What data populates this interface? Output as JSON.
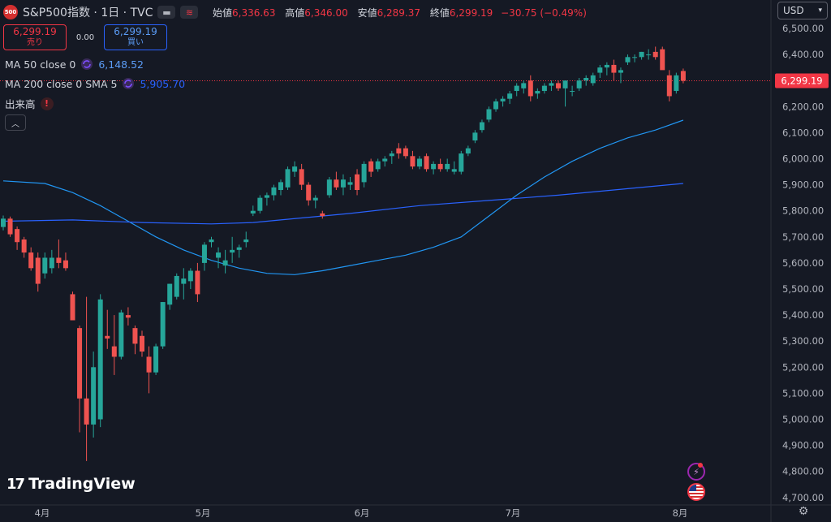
{
  "header": {
    "symbol_badge": "500",
    "title": "S&P500指数 · 1日 · TVC",
    "ohlc": [
      {
        "key": "始値",
        "value": "6,336.63"
      },
      {
        "key": "高値",
        "value": "6,346.00"
      },
      {
        "key": "安値",
        "value": "6,289.37"
      },
      {
        "key": "終値",
        "value": "6,299.19"
      }
    ],
    "change": "−30.75 (−0.49%)"
  },
  "trade": {
    "sell_price": "6,299.19",
    "sell_label": "売り",
    "spread": "0.00",
    "buy_price": "6,299.19",
    "buy_label": "買い"
  },
  "indicators": {
    "ma50": {
      "label": "MA 50 close 0",
      "value": "6,148.52",
      "color": "#2196f3"
    },
    "ma200": {
      "label": "MA 200 close 0 SMA 5",
      "value": "5,905.70",
      "color": "#2962ff"
    },
    "volume": {
      "label": "出来高"
    }
  },
  "currency": {
    "label": "USD"
  },
  "price_axis": {
    "ticks": [
      "6,500.00",
      "6,400.00",
      "6,300.00",
      "6,200.00",
      "6,100.00",
      "6,000.00",
      "5,900.00",
      "5,800.00",
      "5,700.00",
      "5,600.00",
      "5,500.00",
      "5,400.00",
      "5,300.00",
      "5,200.00",
      "5,100.00",
      "5,000.00",
      "4,900.00",
      "4,800.00",
      "4,700.00"
    ],
    "current_price": "6,299.19",
    "current_price_color": "#f23645"
  },
  "time_axis": {
    "ticks": [
      "4月",
      "5月",
      "6月",
      "7月",
      "8月"
    ]
  },
  "brand": {
    "name": "TradingView"
  },
  "chart_data": {
    "type": "candlestick",
    "ylim": [
      4660,
      6560
    ],
    "up_color": "#26a69a",
    "down_color": "#ef5350",
    "candles": [
      [
        5738,
        5782,
        5725,
        5770
      ],
      [
        5770,
        5778,
        5700,
        5710
      ],
      [
        5730,
        5740,
        5650,
        5680
      ],
      [
        5690,
        5700,
        5620,
        5640
      ],
      [
        5640,
        5660,
        5570,
        5580
      ],
      [
        5620,
        5640,
        5490,
        5520
      ],
      [
        5560,
        5640,
        5540,
        5620
      ],
      [
        5580,
        5650,
        5560,
        5620
      ],
      [
        5620,
        5690,
        5580,
        5600
      ],
      [
        5610,
        5640,
        5570,
        5580
      ],
      [
        5480,
        5490,
        5380,
        5380
      ],
      [
        5350,
        5360,
        4950,
        5080
      ],
      [
        5080,
        5470,
        4840,
        4980
      ],
      [
        4980,
        5260,
        4930,
        5200
      ],
      [
        5000,
        5480,
        4970,
        5460
      ],
      [
        5320,
        5420,
        5270,
        5310
      ],
      [
        5280,
        5400,
        5170,
        5240
      ],
      [
        5240,
        5420,
        5230,
        5410
      ],
      [
        5400,
        5430,
        5360,
        5390
      ],
      [
        5350,
        5360,
        5250,
        5290
      ],
      [
        5320,
        5340,
        5240,
        5260
      ],
      [
        5240,
        5280,
        5100,
        5180
      ],
      [
        5180,
        5290,
        5170,
        5280
      ],
      [
        5280,
        5450,
        5270,
        5450
      ],
      [
        5440,
        5520,
        5420,
        5520
      ],
      [
        5470,
        5560,
        5460,
        5550
      ],
      [
        5520,
        5580,
        5460,
        5540
      ],
      [
        5530,
        5580,
        5500,
        5570
      ],
      [
        5570,
        5600,
        5450,
        5480
      ],
      [
        5600,
        5680,
        5570,
        5670
      ],
      [
        5680,
        5700,
        5660,
        5690
      ],
      [
        5620,
        5660,
        5580,
        5640
      ],
      [
        5590,
        5650,
        5560,
        5610
      ],
      [
        5640,
        5700,
        5600,
        5650
      ],
      [
        5650,
        5670,
        5620,
        5660
      ],
      [
        5680,
        5720,
        5660,
        5690
      ],
      [
        5790,
        5820,
        5780,
        5800
      ],
      [
        5800,
        5860,
        5790,
        5850
      ],
      [
        5850,
        5870,
        5820,
        5860
      ],
      [
        5860,
        5900,
        5840,
        5890
      ],
      [
        5880,
        5920,
        5860,
        5910
      ],
      [
        5890,
        5970,
        5880,
        5960
      ],
      [
        5950,
        5990,
        5930,
        5970
      ],
      [
        5960,
        5980,
        5880,
        5900
      ],
      [
        5900,
        5910,
        5820,
        5840
      ],
      [
        5840,
        5860,
        5810,
        5850
      ],
      [
        5790,
        5800,
        5770,
        5780
      ],
      [
        5860,
        5930,
        5850,
        5920
      ],
      [
        5920,
        5950,
        5880,
        5890
      ],
      [
        5890,
        5940,
        5860,
        5920
      ],
      [
        5900,
        5930,
        5880,
        5910
      ],
      [
        5940,
        5960,
        5860,
        5880
      ],
      [
        5910,
        5990,
        5890,
        5980
      ],
      [
        5990,
        6000,
        5930,
        5950
      ],
      [
        5960,
        6000,
        5950,
        5990
      ],
      [
        5990,
        6010,
        5970,
        6000
      ],
      [
        6010,
        6030,
        5980,
        6020
      ],
      [
        6040,
        6060,
        6000,
        6020
      ],
      [
        6040,
        6050,
        6000,
        6010
      ],
      [
        6010,
        6030,
        5960,
        5970
      ],
      [
        5970,
        6010,
        5960,
        6000
      ],
      [
        6010,
        6020,
        5950,
        5960
      ],
      [
        5960,
        5990,
        5940,
        5980
      ],
      [
        5980,
        6000,
        5950,
        5960
      ],
      [
        5960,
        6000,
        5950,
        5980
      ],
      [
        5950,
        5990,
        5940,
        5960
      ],
      [
        5950,
        6030,
        5940,
        6020
      ],
      [
        6020,
        6050,
        6010,
        6040
      ],
      [
        6070,
        6110,
        6060,
        6100
      ],
      [
        6110,
        6150,
        6100,
        6140
      ],
      [
        6150,
        6200,
        6140,
        6190
      ],
      [
        6190,
        6230,
        6180,
        6220
      ],
      [
        6220,
        6240,
        6200,
        6230
      ],
      [
        6230,
        6260,
        6210,
        6250
      ],
      [
        6260,
        6290,
        6240,
        6280
      ],
      [
        6270,
        6300,
        6250,
        6290
      ],
      [
        6300,
        6320,
        6220,
        6240
      ],
      [
        6250,
        6270,
        6230,
        6260
      ],
      [
        6260,
        6290,
        6250,
        6280
      ],
      [
        6280,
        6300,
        6260,
        6290
      ],
      [
        6290,
        6300,
        6260,
        6270
      ],
      [
        6270,
        6300,
        6200,
        6300
      ],
      [
        6260,
        6280,
        6240,
        6260
      ],
      [
        6270,
        6310,
        6260,
        6300
      ],
      [
        6300,
        6320,
        6280,
        6310
      ],
      [
        6290,
        6330,
        6280,
        6320
      ],
      [
        6330,
        6360,
        6310,
        6350
      ],
      [
        6350,
        6370,
        6320,
        6360
      ],
      [
        6360,
        6380,
        6300,
        6330
      ],
      [
        6330,
        6350,
        6290,
        6340
      ],
      [
        6370,
        6400,
        6360,
        6390
      ],
      [
        6390,
        6400,
        6370,
        6390
      ],
      [
        6390,
        6410,
        6380,
        6410
      ],
      [
        6400,
        6420,
        6380,
        6400
      ],
      [
        6410,
        6430,
        6380,
        6390
      ],
      [
        6420,
        6430,
        6350,
        6340
      ],
      [
        6320,
        6340,
        6220,
        6240
      ],
      [
        6260,
        6330,
        6250,
        6320
      ],
      [
        6336.63,
        6346,
        6289.37,
        6299.19
      ]
    ],
    "ma50": [
      [
        0,
        5915
      ],
      [
        6,
        5905
      ],
      [
        10,
        5870
      ],
      [
        14,
        5820
      ],
      [
        18,
        5760
      ],
      [
        22,
        5700
      ],
      [
        26,
        5650
      ],
      [
        30,
        5610
      ],
      [
        34,
        5580
      ],
      [
        38,
        5560
      ],
      [
        42,
        5555
      ],
      [
        46,
        5570
      ],
      [
        50,
        5590
      ],
      [
        54,
        5610
      ],
      [
        58,
        5630
      ],
      [
        62,
        5660
      ],
      [
        66,
        5700
      ],
      [
        70,
        5780
      ],
      [
        74,
        5860
      ],
      [
        78,
        5930
      ],
      [
        82,
        5990
      ],
      [
        86,
        6040
      ],
      [
        90,
        6080
      ],
      [
        94,
        6110
      ],
      [
        98,
        6148
      ]
    ],
    "ma200": [
      [
        0,
        5760
      ],
      [
        10,
        5765
      ],
      [
        20,
        5755
      ],
      [
        30,
        5750
      ],
      [
        36,
        5755
      ],
      [
        40,
        5765
      ],
      [
        50,
        5790
      ],
      [
        60,
        5820
      ],
      [
        70,
        5840
      ],
      [
        80,
        5860
      ],
      [
        90,
        5885
      ],
      [
        98,
        5905
      ]
    ]
  }
}
